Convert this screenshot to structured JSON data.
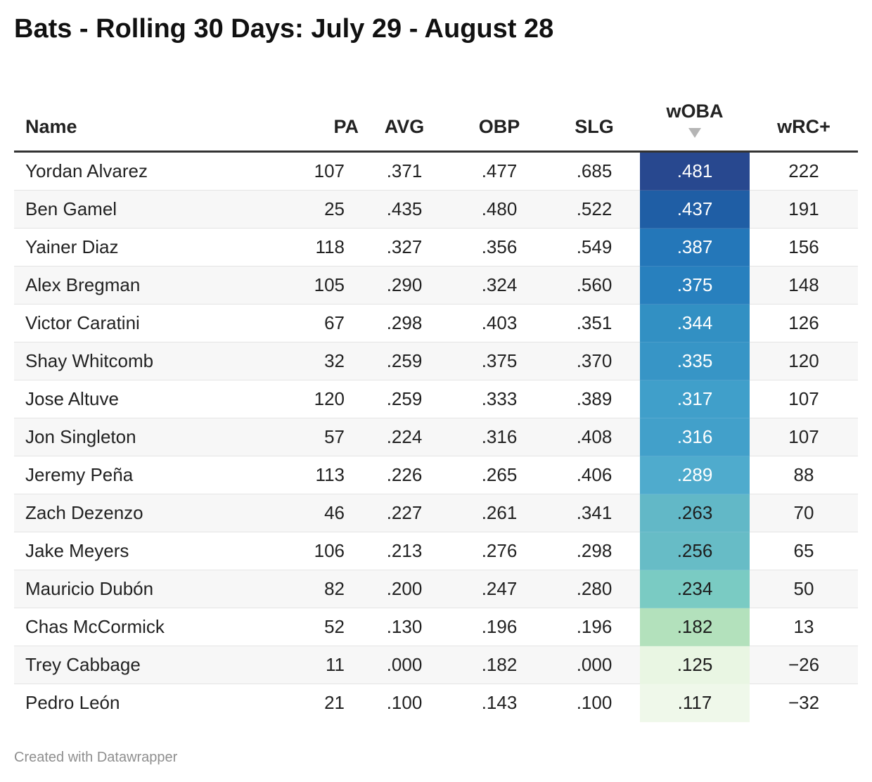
{
  "title": "Bats - Rolling 30 Days: July 29 - August 28",
  "footer": "Created with Datawrapper",
  "chart_data": {
    "type": "table",
    "title": "Bats - Rolling 30 Days: July 29 - August 28",
    "columns": [
      "Name",
      "PA",
      "AVG",
      "OBP",
      "SLG",
      "wOBA",
      "wRC+"
    ],
    "sorted_by": "wOBA",
    "sort_direction": "descending",
    "heatmap_column": "wOBA",
    "rows": [
      {
        "name": "Yordan Alvarez",
        "pa": "107",
        "avg": ".371",
        "obp": ".477",
        "slg": ".685",
        "woba": ".481",
        "wrc": "222",
        "woba_color": "#28488f",
        "woba_text": "#ffffff"
      },
      {
        "name": "Ben Gamel",
        "pa": "25",
        "avg": ".435",
        "obp": ".480",
        "slg": ".522",
        "woba": ".437",
        "wrc": "191",
        "woba_color": "#1f5ea5",
        "woba_text": "#ffffff"
      },
      {
        "name": "Yainer Diaz",
        "pa": "118",
        "avg": ".327",
        "obp": ".356",
        "slg": ".549",
        "woba": ".387",
        "wrc": "156",
        "woba_color": "#2477b9",
        "woba_text": "#ffffff"
      },
      {
        "name": "Alex Bregman",
        "pa": "105",
        "avg": ".290",
        "obp": ".324",
        "slg": ".560",
        "woba": ".375",
        "wrc": "148",
        "woba_color": "#2880be",
        "woba_text": "#ffffff"
      },
      {
        "name": "Victor Caratini",
        "pa": "67",
        "avg": ".298",
        "obp": ".403",
        "slg": ".351",
        "woba": ".344",
        "wrc": "126",
        "woba_color": "#3290c3",
        "woba_text": "#ffffff"
      },
      {
        "name": "Shay Whitcomb",
        "pa": "32",
        "avg": ".259",
        "obp": ".375",
        "slg": ".370",
        "woba": ".335",
        "wrc": "120",
        "woba_color": "#3795c6",
        "woba_text": "#ffffff"
      },
      {
        "name": "Jose Altuve",
        "pa": "120",
        "avg": ".259",
        "obp": ".333",
        "slg": ".389",
        "woba": ".317",
        "wrc": "107",
        "woba_color": "#409fca",
        "woba_text": "#ffffff"
      },
      {
        "name": "Jon Singleton",
        "pa": "57",
        "avg": ".224",
        "obp": ".316",
        "slg": ".408",
        "woba": ".316",
        "wrc": "107",
        "woba_color": "#42a0ca",
        "woba_text": "#ffffff"
      },
      {
        "name": "Jeremy Peña",
        "pa": "113",
        "avg": ".226",
        "obp": ".265",
        "slg": ".406",
        "woba": ".289",
        "wrc": "88",
        "woba_color": "#4fabcd",
        "woba_text": "#ffffff"
      },
      {
        "name": "Zach Dezenzo",
        "pa": "46",
        "avg": ".227",
        "obp": ".261",
        "slg": ".341",
        "woba": ".263",
        "wrc": "70",
        "woba_color": "#62b8c7",
        "woba_text": "#1d1d1d"
      },
      {
        "name": "Jake Meyers",
        "pa": "106",
        "avg": ".213",
        "obp": ".276",
        "slg": ".298",
        "woba": ".256",
        "wrc": "65",
        "woba_color": "#67bcc6",
        "woba_text": "#1d1d1d"
      },
      {
        "name": "Mauricio Dubón",
        "pa": "82",
        "avg": ".200",
        "obp": ".247",
        "slg": ".280",
        "woba": ".234",
        "wrc": "50",
        "woba_color": "#7acbc3",
        "woba_text": "#1d1d1d"
      },
      {
        "name": "Chas McCormick",
        "pa": "52",
        "avg": ".130",
        "obp": ".196",
        "slg": ".196",
        "woba": ".182",
        "wrc": "13",
        "woba_color": "#b3e1bc",
        "woba_text": "#1d1d1d"
      },
      {
        "name": "Trey Cabbage",
        "pa": "11",
        "avg": ".000",
        "obp": ".182",
        "slg": ".000",
        "woba": ".125",
        "wrc": "−26",
        "woba_color": "#e9f6e3",
        "woba_text": "#1d1d1d"
      },
      {
        "name": "Pedro León",
        "pa": "21",
        "avg": ".100",
        "obp": ".143",
        "slg": ".100",
        "woba": ".117",
        "wrc": "−32",
        "woba_color": "#eff8ea",
        "woba_text": "#1d1d1d"
      }
    ]
  }
}
